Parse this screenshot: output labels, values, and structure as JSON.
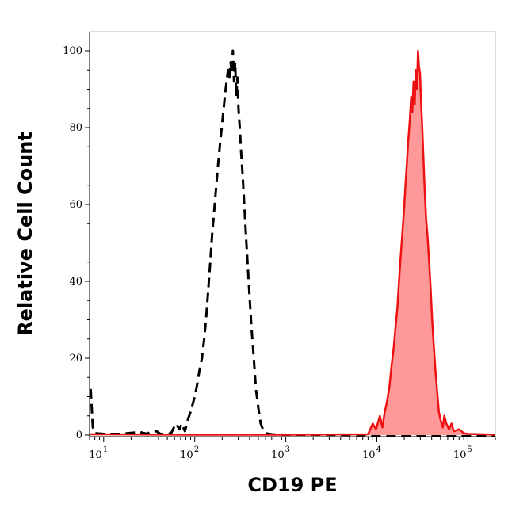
{
  "chart_data": {
    "type": "area",
    "xlabel": "CD19 PE",
    "ylabel": "Relative Cell Count",
    "x_scale": "log",
    "xlim": [
      7,
      200000
    ],
    "ylim": [
      0,
      100
    ],
    "y_ticks": [
      0,
      20,
      40,
      60,
      80,
      100
    ],
    "x_ticks": [
      {
        "base": "10",
        "exp": "1",
        "value": 10
      },
      {
        "base": "10",
        "exp": "2",
        "value": 100
      },
      {
        "base": "10",
        "exp": "3",
        "value": 1000
      },
      {
        "base": "10",
        "exp": "4",
        "value": 10000
      },
      {
        "base": "10",
        "exp": "5",
        "value": 100000
      }
    ],
    "grid": false,
    "legend": "none",
    "series": [
      {
        "style": "dashed",
        "color": "#000000",
        "fill": false,
        "points": [
          [
            7.2,
            12
          ],
          [
            7.6,
            2
          ],
          [
            8,
            0.5
          ],
          [
            10,
            0.3
          ],
          [
            15,
            0.3
          ],
          [
            25,
            0.8
          ],
          [
            30,
            0.3
          ],
          [
            33,
            1
          ],
          [
            38,
            1
          ],
          [
            42,
            0.3
          ],
          [
            50,
            0.3
          ],
          [
            55,
            0.5
          ],
          [
            62,
            3
          ],
          [
            68,
            1.5
          ],
          [
            72,
            3
          ],
          [
            78,
            1
          ],
          [
            84,
            4
          ],
          [
            90,
            6
          ],
          [
            100,
            10
          ],
          [
            106,
            13
          ],
          [
            113,
            17
          ],
          [
            120,
            20
          ],
          [
            127,
            25
          ],
          [
            134,
            31
          ],
          [
            141,
            38
          ],
          [
            148,
            45
          ],
          [
            155,
            52
          ],
          [
            163,
            58
          ],
          [
            171,
            64
          ],
          [
            180,
            70
          ],
          [
            190,
            76
          ],
          [
            198,
            80
          ],
          [
            208,
            85
          ],
          [
            216,
            89
          ],
          [
            224,
            92
          ],
          [
            232,
            95
          ],
          [
            240,
            93
          ],
          [
            248,
            97
          ],
          [
            255,
            94
          ],
          [
            262,
            100
          ],
          [
            270,
            92
          ],
          [
            278,
            97
          ],
          [
            286,
            88
          ],
          [
            294,
            93
          ],
          [
            302,
            85
          ],
          [
            312,
            80
          ],
          [
            322,
            74
          ],
          [
            335,
            68
          ],
          [
            350,
            60
          ],
          [
            365,
            52
          ],
          [
            380,
            45
          ],
          [
            400,
            36
          ],
          [
            420,
            28
          ],
          [
            445,
            20
          ],
          [
            470,
            12
          ],
          [
            500,
            7
          ],
          [
            530,
            3
          ],
          [
            560,
            1.5
          ],
          [
            600,
            0.5
          ],
          [
            700,
            0.2
          ],
          [
            1000,
            0.1
          ],
          [
            2000,
            0.1
          ],
          [
            10000,
            0
          ],
          [
            20000,
            0
          ],
          [
            200000,
            0
          ]
        ]
      },
      {
        "style": "solid",
        "color": "#ee1111",
        "fill": true,
        "fill_color": "#ff9999",
        "points": [
          [
            7,
            0.2
          ],
          [
            100,
            0.1
          ],
          [
            1000,
            0.1
          ],
          [
            8000,
            0.2
          ],
          [
            9000,
            3
          ],
          [
            9800,
            1.5
          ],
          [
            10800,
            5
          ],
          [
            11500,
            2
          ],
          [
            12200,
            6
          ],
          [
            13000,
            9
          ],
          [
            13800,
            13
          ],
          [
            14500,
            18
          ],
          [
            15200,
            22
          ],
          [
            16000,
            28
          ],
          [
            16800,
            33
          ],
          [
            17500,
            40
          ],
          [
            18200,
            46
          ],
          [
            19000,
            52
          ],
          [
            19800,
            58
          ],
          [
            20500,
            64
          ],
          [
            21300,
            70
          ],
          [
            22000,
            76
          ],
          [
            23000,
            82
          ],
          [
            23800,
            88
          ],
          [
            24500,
            84
          ],
          [
            25300,
            92
          ],
          [
            26000,
            86
          ],
          [
            26800,
            95
          ],
          [
            27500,
            90
          ],
          [
            28300,
            100
          ],
          [
            29000,
            96
          ],
          [
            29800,
            94
          ],
          [
            30500,
            87
          ],
          [
            31500,
            80
          ],
          [
            32500,
            72
          ],
          [
            33500,
            64
          ],
          [
            34800,
            56
          ],
          [
            36000,
            52
          ],
          [
            37500,
            45
          ],
          [
            39000,
            38
          ],
          [
            40500,
            30
          ],
          [
            42000,
            24
          ],
          [
            44000,
            17
          ],
          [
            46000,
            11
          ],
          [
            48000,
            6
          ],
          [
            50000,
            4
          ],
          [
            53000,
            2
          ],
          [
            55000,
            5
          ],
          [
            58000,
            3
          ],
          [
            62000,
            1.5
          ],
          [
            66000,
            3
          ],
          [
            70000,
            1
          ],
          [
            80000,
            1.5
          ],
          [
            90000,
            0.5
          ],
          [
            100000,
            0.3
          ],
          [
            150000,
            0.2
          ],
          [
            200000,
            0.1
          ]
        ]
      }
    ]
  }
}
